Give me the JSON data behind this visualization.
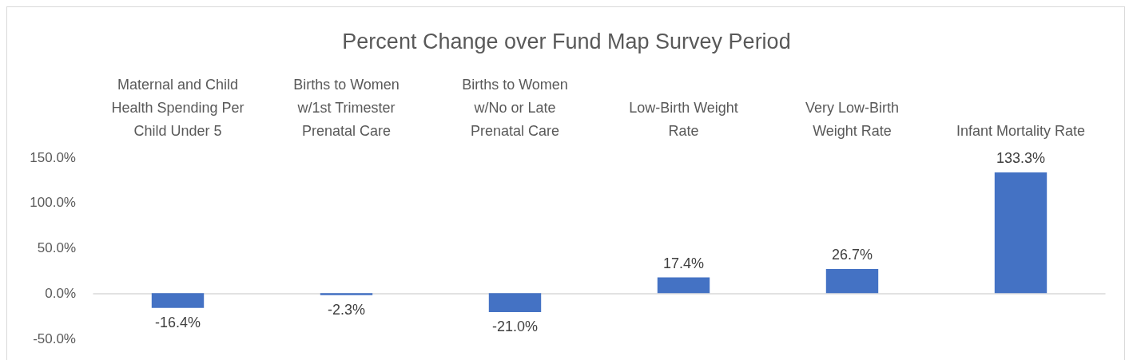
{
  "chart_data": {
    "type": "bar",
    "title": "Percent Change over Fund Map Survey Period",
    "categories": [
      "Maternal and Child Health Spending Per Child Under 5",
      "Births to Women w/1st Trimester Prenatal Care",
      "Births to Women w/No or Late Prenatal Care",
      "Low-Birth Weight Rate",
      "Very Low-Birth Weight Rate",
      "Infant Mortality Rate"
    ],
    "values": [
      -16.4,
      -2.3,
      -21.0,
      17.4,
      26.7,
      133.3
    ],
    "value_labels": [
      "-16.4%",
      "-2.3%",
      "-21.0%",
      "17.4%",
      "26.7%",
      "133.3%"
    ],
    "color": "#4472c4",
    "ylim": [
      -50,
      150
    ],
    "yticks": [
      {
        "value": -50,
        "label": "-50.0%"
      },
      {
        "value": 0,
        "label": "0.0%"
      },
      {
        "value": 50,
        "label": "50.0%"
      },
      {
        "value": 100,
        "label": "100.0%"
      },
      {
        "value": 150,
        "label": "150.0%"
      }
    ]
  }
}
